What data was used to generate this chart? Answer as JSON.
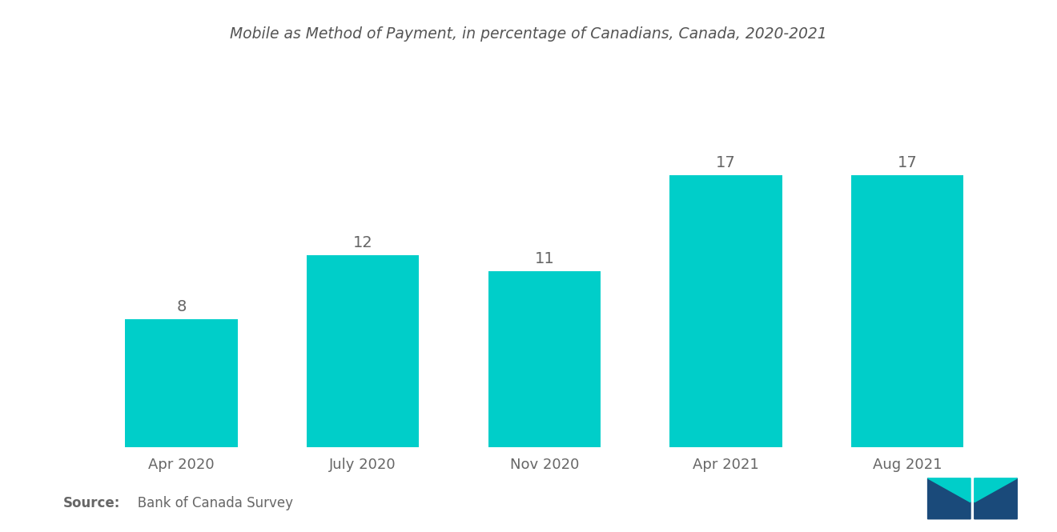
{
  "title": "Mobile as Method of Payment, in percentage of Canadians, Canada, 2020-2021",
  "categories": [
    "Apr 2020",
    "July 2020",
    "Nov 2020",
    "Apr 2021",
    "Aug 2021"
  ],
  "values": [
    8,
    12,
    11,
    17,
    17
  ],
  "bar_color": "#00CEC9",
  "label_color": "#666666",
  "title_color": "#555555",
  "background_color": "#ffffff",
  "source_bold": "Source:",
  "source_rest": "   Bank of Canada Survey",
  "ylim": [
    0,
    22
  ],
  "bar_width": 0.62,
  "title_fontsize": 13.5,
  "label_fontsize": 14,
  "tick_fontsize": 13,
  "source_fontsize": 12,
  "logo_dark_color": "#1a4a7a",
  "logo_teal_color": "#00CEC9"
}
